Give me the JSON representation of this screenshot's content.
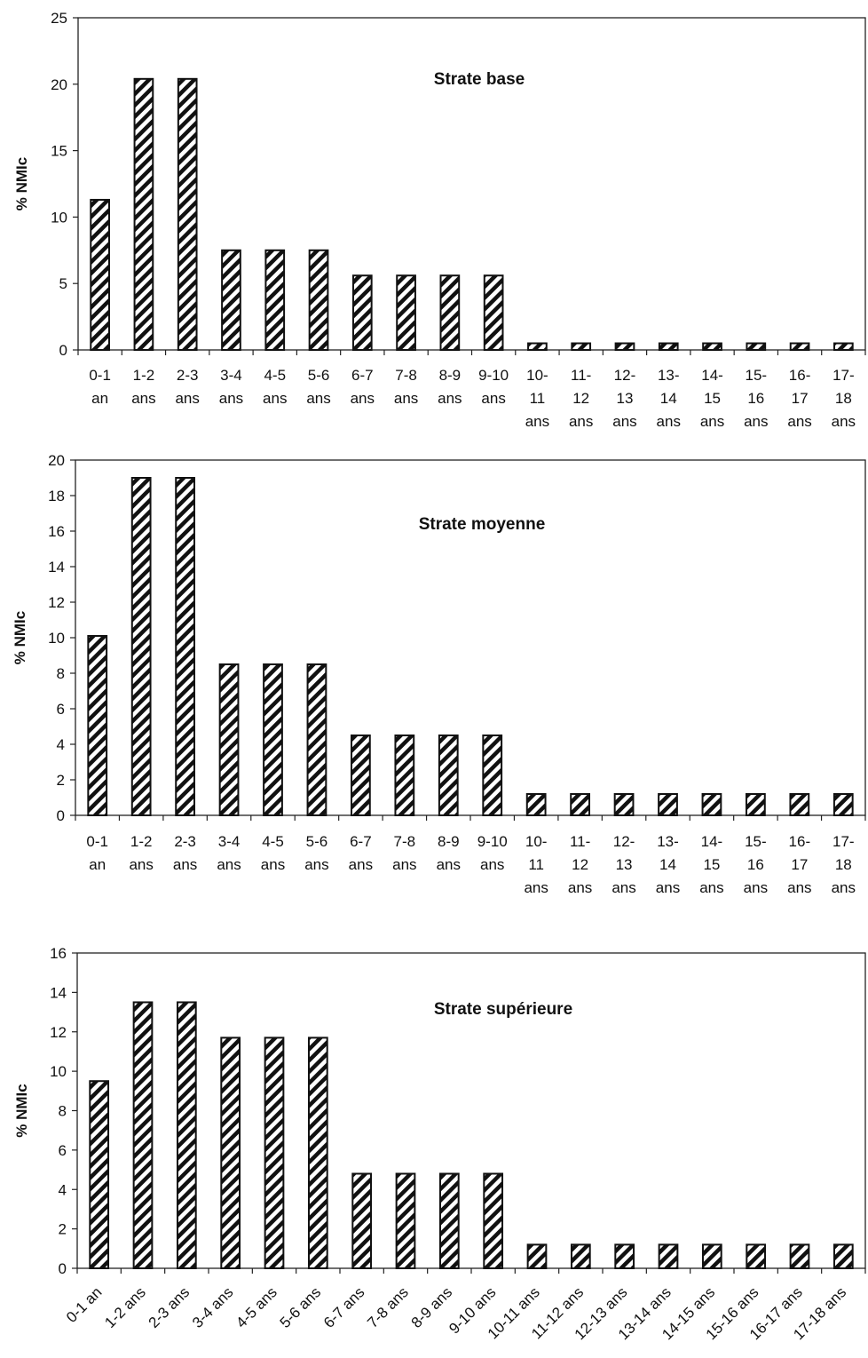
{
  "chart_data": [
    {
      "type": "bar",
      "title": "Strate base",
      "ylabel": "% NMIc",
      "xlabel": "",
      "ylim": [
        0,
        25
      ],
      "yticks": [
        0,
        5,
        10,
        15,
        20,
        25
      ],
      "category_label_style": "wrapped",
      "categories": [
        [
          "0-1",
          "an"
        ],
        [
          "1-2",
          "ans"
        ],
        [
          "2-3",
          "ans"
        ],
        [
          "3-4",
          "ans"
        ],
        [
          "4-5",
          "ans"
        ],
        [
          "5-6",
          "ans"
        ],
        [
          "6-7",
          "ans"
        ],
        [
          "7-8",
          "ans"
        ],
        [
          "8-9",
          "ans"
        ],
        [
          "9-10",
          "ans"
        ],
        [
          "10-",
          "11",
          "ans"
        ],
        [
          "11-",
          "12",
          "ans"
        ],
        [
          "12-",
          "13",
          "ans"
        ],
        [
          "13-",
          "14",
          "ans"
        ],
        [
          "14-",
          "15",
          "ans"
        ],
        [
          "15-",
          "16",
          "ans"
        ],
        [
          "16-",
          "17",
          "ans"
        ],
        [
          "17-",
          "18",
          "ans"
        ]
      ],
      "values": [
        11.3,
        20.4,
        20.4,
        7.5,
        7.5,
        7.5,
        5.6,
        5.6,
        5.6,
        5.6,
        0.5,
        0.5,
        0.5,
        0.5,
        0.5,
        0.5,
        0.5,
        0.5
      ],
      "bar_pattern": "diagonal-hatch"
    },
    {
      "type": "bar",
      "title": "Strate moyenne",
      "ylabel": "% NMIc",
      "xlabel": "",
      "ylim": [
        0,
        20
      ],
      "yticks": [
        0,
        2,
        4,
        6,
        8,
        10,
        12,
        14,
        16,
        18,
        20
      ],
      "category_label_style": "wrapped",
      "categories": [
        [
          "0-1",
          "an"
        ],
        [
          "1-2",
          "ans"
        ],
        [
          "2-3",
          "ans"
        ],
        [
          "3-4",
          "ans"
        ],
        [
          "4-5",
          "ans"
        ],
        [
          "5-6",
          "ans"
        ],
        [
          "6-7",
          "ans"
        ],
        [
          "7-8",
          "ans"
        ],
        [
          "8-9",
          "ans"
        ],
        [
          "9-10",
          "ans"
        ],
        [
          "10-",
          "11",
          "ans"
        ],
        [
          "11-",
          "12",
          "ans"
        ],
        [
          "12-",
          "13",
          "ans"
        ],
        [
          "13-",
          "14",
          "ans"
        ],
        [
          "14-",
          "15",
          "ans"
        ],
        [
          "15-",
          "16",
          "ans"
        ],
        [
          "16-",
          "17",
          "ans"
        ],
        [
          "17-",
          "18",
          "ans"
        ]
      ],
      "values": [
        10.1,
        19.0,
        19.0,
        8.5,
        8.5,
        8.5,
        4.5,
        4.5,
        4.5,
        4.5,
        1.2,
        1.2,
        1.2,
        1.2,
        1.2,
        1.2,
        1.2,
        1.2
      ],
      "bar_pattern": "diagonal-hatch"
    },
    {
      "type": "bar",
      "title": "Strate supérieure",
      "ylabel": "% NMIc",
      "xlabel": "",
      "ylim": [
        0,
        16
      ],
      "yticks": [
        0,
        2,
        4,
        6,
        8,
        10,
        12,
        14,
        16
      ],
      "category_label_style": "rotated",
      "categories": [
        [
          "0-1 an"
        ],
        [
          "1-2 ans"
        ],
        [
          "2-3 ans"
        ],
        [
          "3-4 ans"
        ],
        [
          "4-5 ans"
        ],
        [
          "5-6 ans"
        ],
        [
          "6-7 ans"
        ],
        [
          "7-8 ans"
        ],
        [
          "8-9 ans"
        ],
        [
          "9-10 ans"
        ],
        [
          "10-11 ans"
        ],
        [
          "11-12 ans"
        ],
        [
          "12-13 ans"
        ],
        [
          "13-14 ans"
        ],
        [
          "14-15 ans"
        ],
        [
          "15-16 ans"
        ],
        [
          "16-17 ans"
        ],
        [
          "17-18 ans"
        ]
      ],
      "values": [
        9.5,
        13.5,
        13.5,
        11.7,
        11.7,
        11.7,
        4.8,
        4.8,
        4.8,
        4.8,
        1.2,
        1.2,
        1.2,
        1.2,
        1.2,
        1.2,
        1.2,
        1.2
      ],
      "bar_pattern": "diagonal-hatch"
    }
  ]
}
